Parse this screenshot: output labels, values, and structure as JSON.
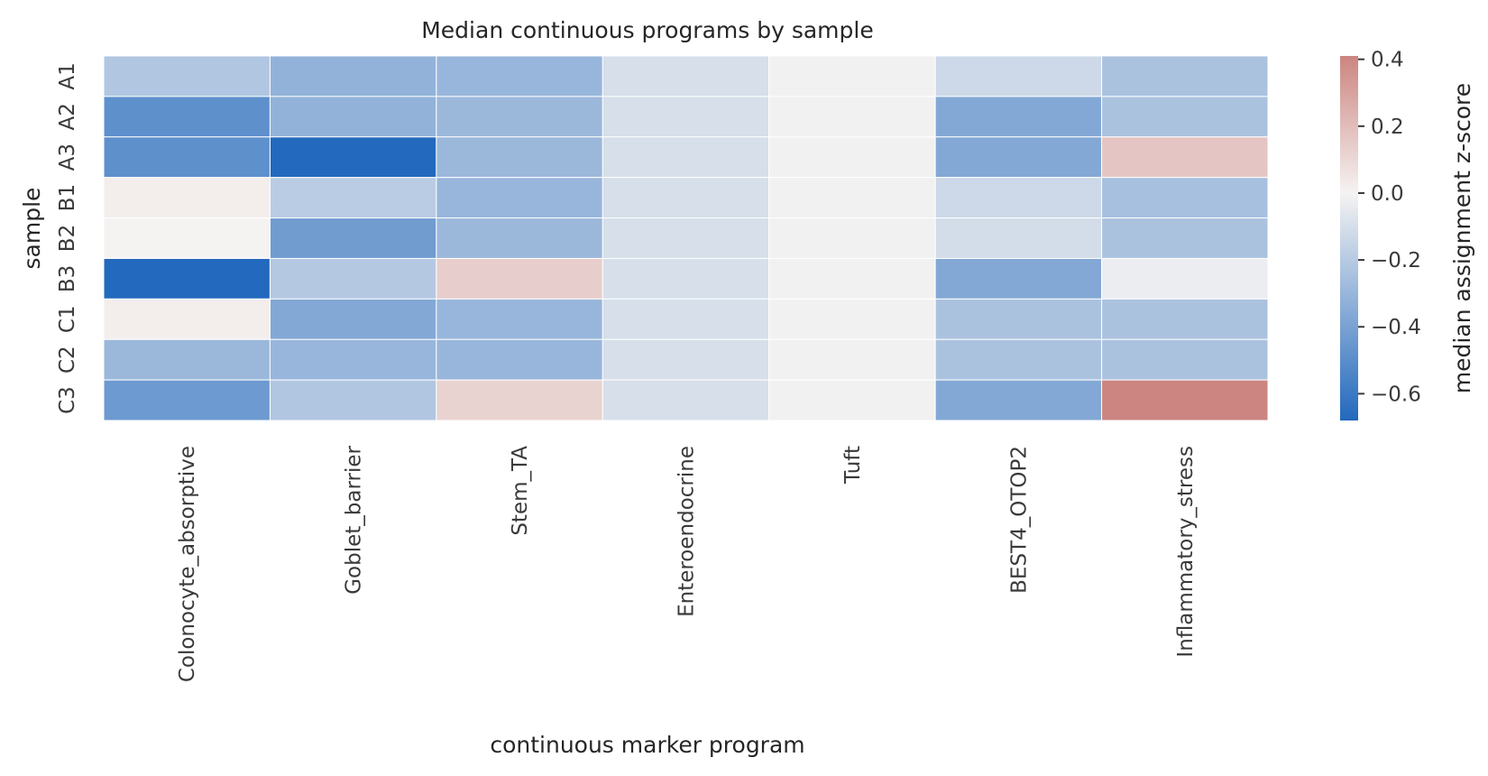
{
  "chart_data": {
    "type": "heatmap",
    "title": "Median continuous programs by sample",
    "xlabel": "continuous marker program",
    "ylabel": "sample",
    "x_categories": [
      "Colonocyte_absorptive",
      "Goblet_barrier",
      "Stem_TA",
      "Enteroendocrine",
      "Tuft",
      "BEST4_OTOP2",
      "Inflammatory_stress"
    ],
    "y_categories": [
      "A1",
      "A2",
      "A3",
      "B1",
      "B2",
      "B3",
      "C1",
      "C2",
      "C3"
    ],
    "values": [
      [
        -0.22,
        -0.32,
        -0.3,
        -0.1,
        -0.01,
        -0.13,
        -0.24
      ],
      [
        -0.49,
        -0.32,
        -0.29,
        -0.1,
        -0.01,
        -0.37,
        -0.24
      ],
      [
        -0.49,
        -0.68,
        -0.29,
        -0.1,
        -0.01,
        -0.37,
        0.17
      ],
      [
        0.02,
        -0.19,
        -0.3,
        -0.1,
        -0.01,
        -0.13,
        -0.25
      ],
      [
        0.0,
        -0.43,
        -0.29,
        -0.1,
        -0.01,
        -0.11,
        -0.24
      ],
      [
        -0.68,
        -0.21,
        0.14,
        -0.1,
        -0.01,
        -0.37,
        -0.03
      ],
      [
        0.02,
        -0.37,
        -0.3,
        -0.1,
        -0.01,
        -0.24,
        -0.24
      ],
      [
        -0.29,
        -0.3,
        -0.3,
        -0.1,
        -0.01,
        -0.24,
        -0.24
      ],
      [
        -0.44,
        -0.22,
        0.12,
        -0.1,
        -0.01,
        -0.37,
        0.41
      ]
    ],
    "colorbar": {
      "label": "median assignment z-score",
      "min": -0.68,
      "max": 0.41,
      "ticks": [
        -0.6,
        -0.4,
        -0.2,
        0.0,
        0.2,
        0.4
      ],
      "tick_labels": [
        "−0.6",
        "−0.4",
        "−0.2",
        "0.0",
        "0.2",
        "0.4"
      ]
    },
    "colors": {
      "low": "#2369bd",
      "mid": "#f5f3f2",
      "high": "#cc8580"
    },
    "legend": "colorbar-right",
    "grid": false
  }
}
